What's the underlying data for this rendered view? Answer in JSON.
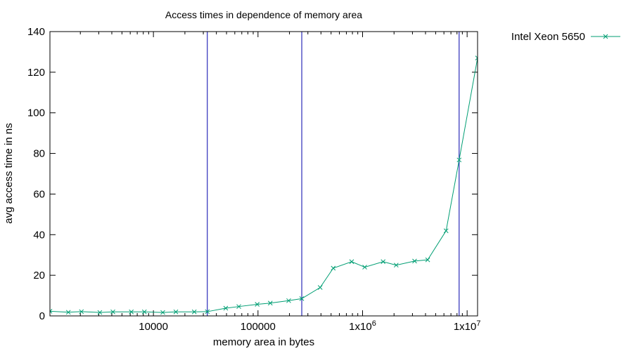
{
  "chart_data": {
    "type": "line",
    "title": "Access times in dependence of memory area",
    "xlabel": "memory area in bytes",
    "ylabel": "avg access time in ns",
    "x_scale": "log",
    "xlim": [
      1024,
      12582912
    ],
    "ylim": [
      0,
      140
    ],
    "x_ticks": [
      {
        "value": 10000,
        "label": "10000"
      },
      {
        "value": 100000,
        "label": "100000"
      },
      {
        "value": 1000000,
        "label": "1x10",
        "exp": "6"
      },
      {
        "value": 10000000,
        "label": "1x10",
        "exp": "7"
      }
    ],
    "y_ticks": [
      0,
      20,
      40,
      60,
      80,
      100,
      120,
      140
    ],
    "grid": false,
    "legend_position": "top-right outside plot",
    "series": [
      {
        "name": "Intel Xeon 5650",
        "color": "#009e73",
        "marker": "x",
        "x": [
          1024,
          1536,
          2048,
          3072,
          4096,
          6144,
          8192,
          12288,
          16384,
          24576,
          32768,
          49152,
          65536,
          98304,
          131072,
          196608,
          262144,
          393216,
          524288,
          786432,
          1048576,
          1572864,
          2097152,
          3145728,
          4194304,
          6291456,
          8388608,
          12582912
        ],
        "values": [
          2.3,
          1.8,
          2.1,
          1.7,
          2.0,
          2.0,
          2.0,
          1.7,
          2.0,
          2.0,
          2.1,
          3.8,
          4.6,
          5.7,
          6.3,
          7.5,
          8.5,
          14.0,
          23.5,
          26.7,
          24.0,
          26.7,
          25.0,
          27.0,
          27.6,
          41.9,
          76.8,
          127.0
        ]
      }
    ],
    "vertical_markers": {
      "color": "#0000aa",
      "x": [
        32768,
        262144,
        8388608
      ]
    }
  }
}
